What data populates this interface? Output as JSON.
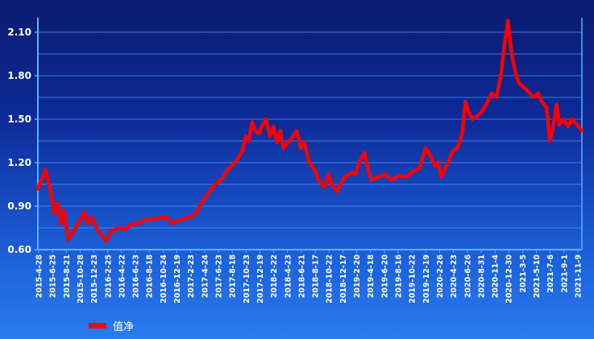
{
  "chart_data": {
    "type": "line",
    "title": "",
    "xlabel": "",
    "ylabel": "",
    "ylim": [
      0.6,
      2.2
    ],
    "grid": true,
    "legend_position": "bottom-left",
    "colors": {
      "line": "#ff0000",
      "grid": "#4a9cff",
      "axis": "#5ab0ff",
      "background_top": "#0a1b6e",
      "background_bottom": "#2a7bf0",
      "text": "#ffffff"
    },
    "yticks": [
      "0.60",
      "0.90",
      "1.20",
      "1.50",
      "1.80",
      "2.10"
    ],
    "xticks": [
      "2015-4-28",
      "2015-6-25",
      "2015-8-21",
      "2015-10-28",
      "2015-12-23",
      "2016-2-25",
      "2016-4-22",
      "2016-6-23",
      "2016-8-18",
      "2016-10-24",
      "2016-12-19",
      "2017-2-23",
      "2017-4-24",
      "2017-6-23",
      "2017-8-18",
      "2017-10-23",
      "2017-12-19",
      "2018-2-22",
      "2018-4-23",
      "2018-6-21",
      "2018-8-17",
      "2018-10-22",
      "2018-12-17",
      "2019-2-20",
      "2019-4-18",
      "2019-6-20",
      "2019-8-16",
      "2019-10-22",
      "2019-12-19",
      "2020-2-26",
      "2020-4-23",
      "2020-6-26",
      "2020-8-31",
      "2020-11-4",
      "2020-12-30",
      "2021-3-5",
      "2021-5-10",
      "2021-7-6",
      "2021-9-1",
      "2021-11-9"
    ],
    "series": [
      {
        "name": "值净",
        "x": [
          "2015-4-28",
          "2015-6-1",
          "2015-6-25",
          "2015-7-10",
          "2015-7-25",
          "2015-8-10",
          "2015-8-21",
          "2015-9-10",
          "2015-10-1",
          "2015-10-28",
          "2015-11-20",
          "2015-12-5",
          "2015-12-23",
          "2016-1-15",
          "2016-2-5",
          "2016-2-25",
          "2016-3-20",
          "2016-4-22",
          "2016-5-20",
          "2016-6-23",
          "2016-7-20",
          "2016-8-18",
          "2016-9-20",
          "2016-10-24",
          "2016-11-20",
          "2016-12-19",
          "2017-1-10",
          "2017-2-23",
          "2017-3-25",
          "2017-4-24",
          "2017-5-20",
          "2017-6-23",
          "2017-7-20",
          "2017-8-18",
          "2017-9-20",
          "2017-10-23",
          "2017-11-5",
          "2017-11-20",
          "2017-12-5",
          "2017-12-19",
          "2018-1-5",
          "2018-1-20",
          "2018-2-5",
          "2018-2-22",
          "2018-3-10",
          "2018-3-25",
          "2018-4-10",
          "2018-4-23",
          "2018-5-20",
          "2018-6-5",
          "2018-6-21",
          "2018-7-10",
          "2018-7-25",
          "2018-8-17",
          "2018-9-10",
          "2018-9-25",
          "2018-10-22",
          "2018-11-10",
          "2018-11-25",
          "2018-12-17",
          "2019-1-5",
          "2019-1-20",
          "2019-2-20",
          "2019-3-10",
          "2019-3-25",
          "2019-4-18",
          "2019-5-5",
          "2019-5-20",
          "2019-6-20",
          "2019-7-20",
          "2019-8-16",
          "2019-9-20",
          "2019-10-22",
          "2019-11-20",
          "2019-12-19",
          "2020-1-15",
          "2020-2-5",
          "2020-2-26",
          "2020-3-10",
          "2020-3-25",
          "2020-4-23",
          "2020-5-15",
          "2020-6-5",
          "2020-6-26",
          "2020-7-10",
          "2020-7-25",
          "2020-8-10",
          "2020-8-31",
          "2020-9-20",
          "2020-10-10",
          "2020-11-4",
          "2020-11-25",
          "2020-12-15",
          "2020-12-30",
          "2021-1-15",
          "2021-2-1",
          "2021-2-18",
          "2021-3-5",
          "2021-3-25",
          "2021-4-10",
          "2021-5-10",
          "2021-5-30",
          "2021-6-15",
          "2021-7-6",
          "2021-7-20",
          "2021-8-5",
          "2021-8-20",
          "2021-9-1",
          "2021-9-20",
          "2021-10-10",
          "2021-10-25",
          "2021-11-9",
          "2021-12-10"
        ],
        "values": [
          1.02,
          1.15,
          1.0,
          0.85,
          0.92,
          0.78,
          0.87,
          0.67,
          0.72,
          0.79,
          0.86,
          0.78,
          0.82,
          0.75,
          0.7,
          0.66,
          0.73,
          0.75,
          0.74,
          0.78,
          0.78,
          0.81,
          0.81,
          0.82,
          0.82,
          0.78,
          0.8,
          0.82,
          0.84,
          0.92,
          0.98,
          1.05,
          1.08,
          1.15,
          1.2,
          1.28,
          1.38,
          1.35,
          1.48,
          1.42,
          1.4,
          1.46,
          1.5,
          1.38,
          1.45,
          1.34,
          1.42,
          1.3,
          1.35,
          1.38,
          1.42,
          1.3,
          1.34,
          1.2,
          1.15,
          1.08,
          1.03,
          1.12,
          1.05,
          1.0,
          1.06,
          1.1,
          1.13,
          1.12,
          1.2,
          1.27,
          1.15,
          1.08,
          1.1,
          1.12,
          1.08,
          1.11,
          1.1,
          1.14,
          1.16,
          1.3,
          1.25,
          1.18,
          1.2,
          1.1,
          1.2,
          1.28,
          1.3,
          1.4,
          1.62,
          1.55,
          1.5,
          1.52,
          1.55,
          1.6,
          1.68,
          1.65,
          1.8,
          2.0,
          2.18,
          1.95,
          1.82,
          1.75,
          1.72,
          1.7,
          1.65,
          1.68,
          1.62,
          1.58,
          1.35,
          1.45,
          1.6,
          1.46,
          1.5,
          1.45,
          1.5,
          1.48,
          1.42
        ]
      }
    ]
  }
}
